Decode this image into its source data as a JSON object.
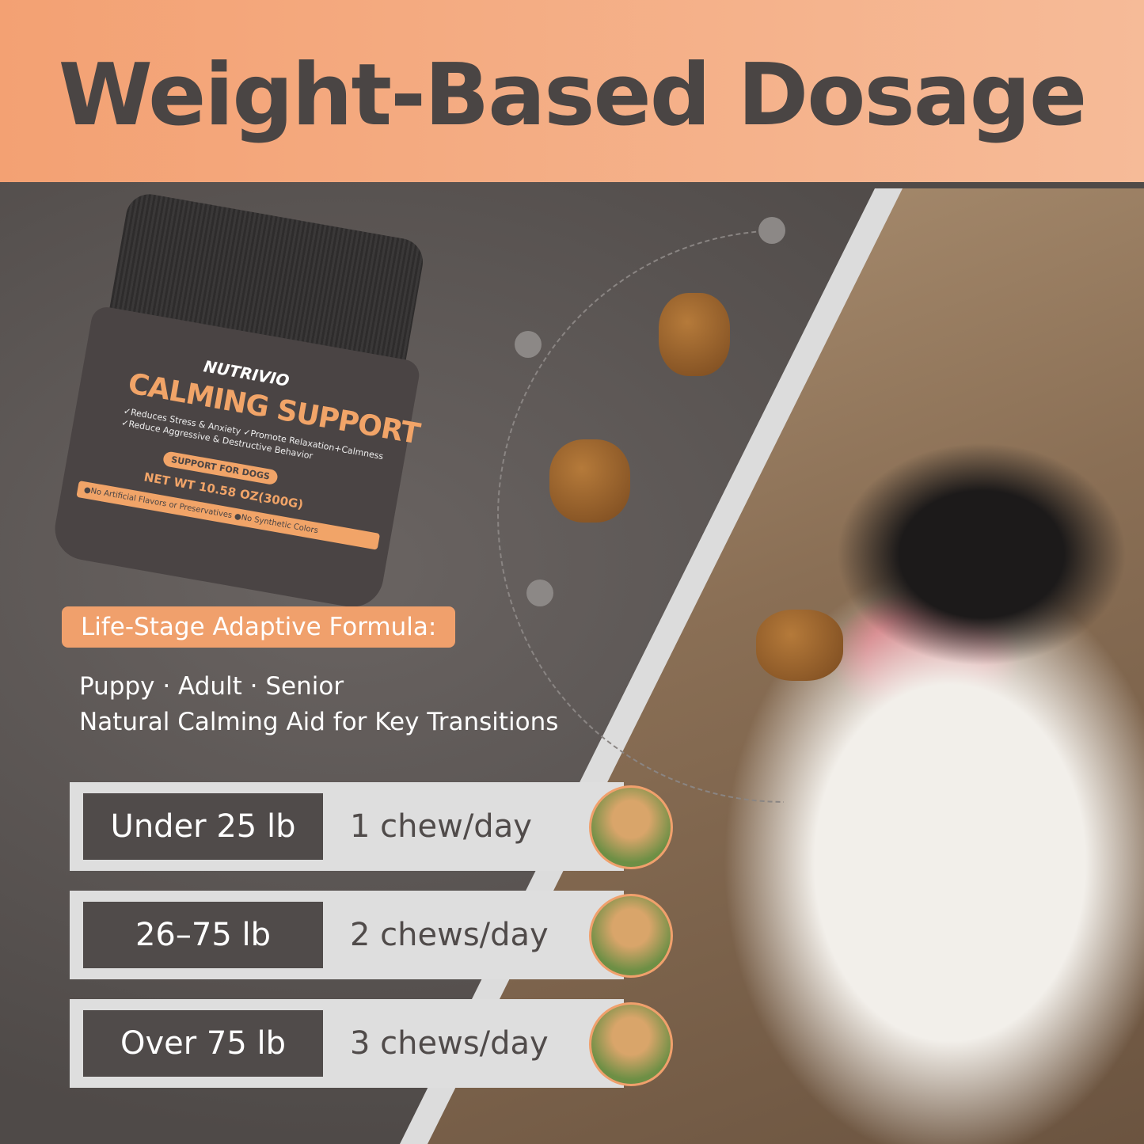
{
  "header": {
    "title": "Weight-Based Dosage"
  },
  "product": {
    "brand": "NUTRIVIO",
    "name": "CALMING SUPPORT",
    "claims": [
      "✓Reduces Stress & Anxiety",
      "✓Promote Relaxation+Calmness",
      "✓Reduce Aggressive & Destructive Behavior"
    ],
    "badge": "SUPPORT FOR DOGS",
    "net_weight": "NET WT 10.58 OZ(300G)",
    "band": "●No Artificial Flavors or Preservatives ●No Synthetic Colors"
  },
  "formula": {
    "label": "Life-Stage Adaptive Formula:",
    "line1": "Puppy · Adult · Senior",
    "line2": "Natural Calming Aid for Key Transitions"
  },
  "dosage": [
    {
      "weight": "Under 25 lb",
      "dose": "1 chew/day"
    },
    {
      "weight": "26–75 lb",
      "dose": "2 chews/day"
    },
    {
      "weight": "Over 75 lb",
      "dose": "3 chews/day"
    }
  ],
  "colors": {
    "accent": "#f0a06c",
    "dark": "#504b4a",
    "header": "#f3a173"
  }
}
